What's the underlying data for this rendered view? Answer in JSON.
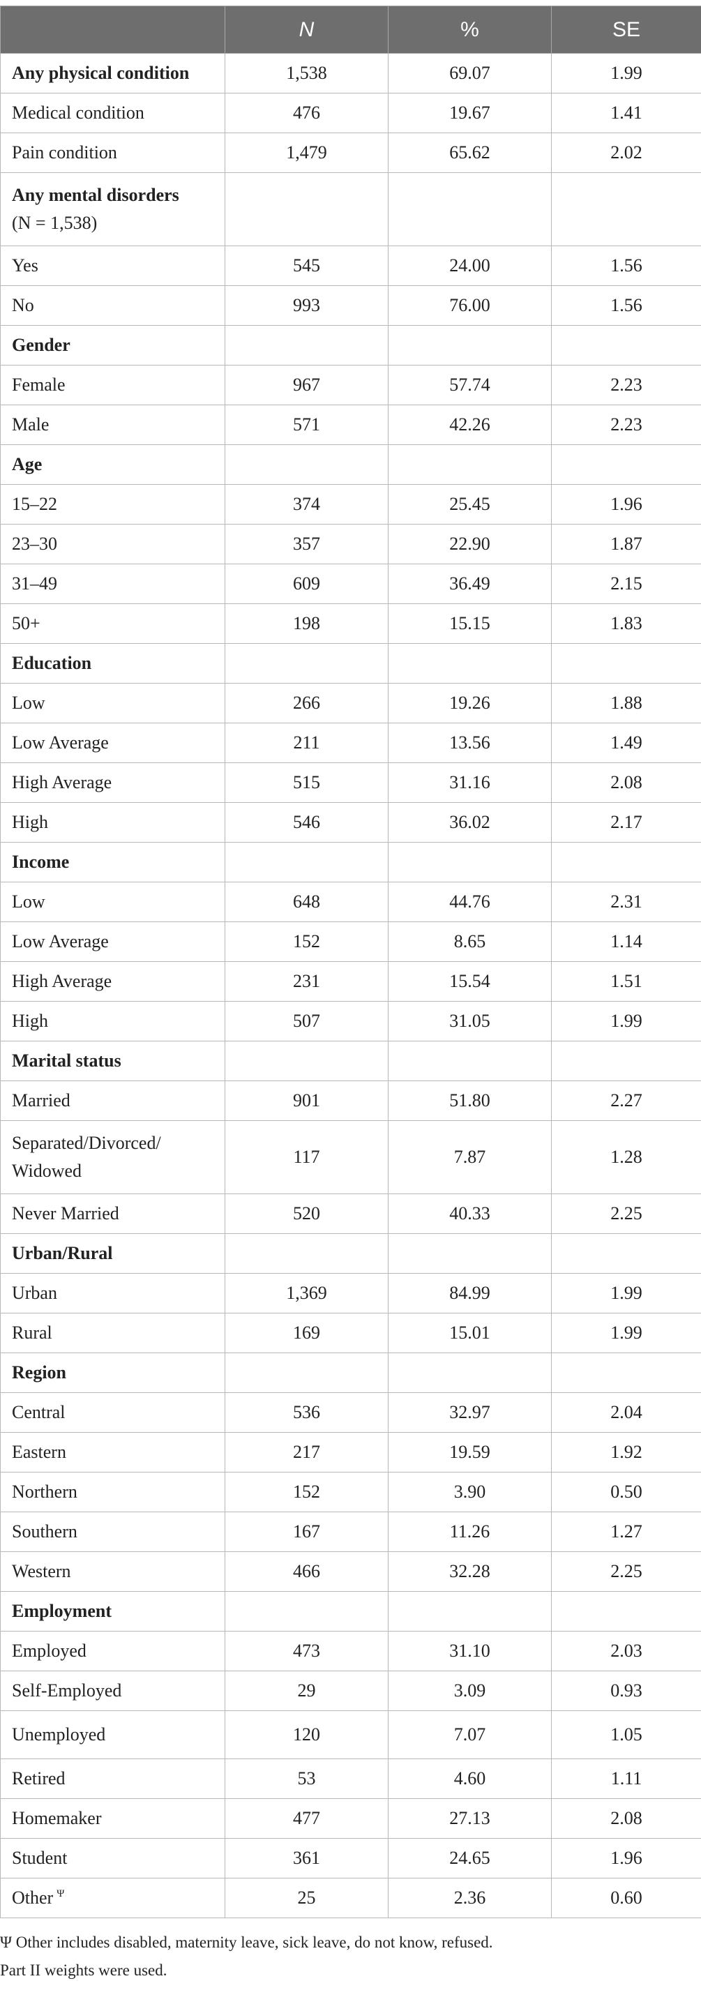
{
  "table": {
    "headers": [
      "",
      "N",
      "%",
      "SE"
    ],
    "rows": [
      {
        "label": "Any physical condition",
        "n": "1,538",
        "pct": "69.07",
        "se": "1.99",
        "bold": true
      },
      {
        "label": "Medical condition",
        "n": "476",
        "pct": "19.67",
        "se": "1.41"
      },
      {
        "label": "Pain condition",
        "n": "1,479",
        "pct": "65.62",
        "se": "2.02"
      },
      {
        "label": "Any mental disorders",
        "label2": "(N = 1,538)",
        "n": "",
        "pct": "",
        "se": "",
        "bold": true,
        "tall": true
      },
      {
        "label": "Yes",
        "n": "545",
        "pct": "24.00",
        "se": "1.56"
      },
      {
        "label": "No",
        "n": "993",
        "pct": "76.00",
        "se": "1.56"
      },
      {
        "label": "Gender",
        "n": "",
        "pct": "",
        "se": "",
        "bold": true
      },
      {
        "label": "Female",
        "n": "967",
        "pct": "57.74",
        "se": "2.23"
      },
      {
        "label": "Male",
        "n": "571",
        "pct": "42.26",
        "se": "2.23"
      },
      {
        "label": "Age",
        "n": "",
        "pct": "",
        "se": "",
        "bold": true
      },
      {
        "label": "15–22",
        "n": "374",
        "pct": "25.45",
        "se": "1.96"
      },
      {
        "label": "23–30",
        "n": "357",
        "pct": "22.90",
        "se": "1.87"
      },
      {
        "label": "31–49",
        "n": "609",
        "pct": "36.49",
        "se": "2.15"
      },
      {
        "label": "50+",
        "n": "198",
        "pct": "15.15",
        "se": "1.83"
      },
      {
        "label": "Education",
        "n": "",
        "pct": "",
        "se": "",
        "bold": true
      },
      {
        "label": "Low",
        "n": "266",
        "pct": "19.26",
        "se": "1.88"
      },
      {
        "label": "Low Average",
        "n": "211",
        "pct": "13.56",
        "se": "1.49"
      },
      {
        "label": "High Average",
        "n": "515",
        "pct": "31.16",
        "se": "2.08"
      },
      {
        "label": "High",
        "n": "546",
        "pct": "36.02",
        "se": "2.17"
      },
      {
        "label": "Income",
        "n": "",
        "pct": "",
        "se": "",
        "bold": true
      },
      {
        "label": "Low",
        "n": "648",
        "pct": "44.76",
        "se": "2.31"
      },
      {
        "label": "Low Average",
        "n": "152",
        "pct": "8.65",
        "se": "1.14"
      },
      {
        "label": "High Average",
        "n": "231",
        "pct": "15.54",
        "se": "1.51"
      },
      {
        "label": "High",
        "n": "507",
        "pct": "31.05",
        "se": "1.99"
      },
      {
        "label": "Marital status",
        "n": "",
        "pct": "",
        "se": "",
        "bold": true
      },
      {
        "label": "Married",
        "n": "901",
        "pct": "51.80",
        "se": "2.27"
      },
      {
        "label": "Separated/Divorced/",
        "label2": "Widowed",
        "n": "117",
        "pct": "7.87",
        "se": "1.28",
        "tall": true
      },
      {
        "label": "Never Married",
        "n": "520",
        "pct": "40.33",
        "se": "2.25"
      },
      {
        "label": "Urban/Rural",
        "n": "",
        "pct": "",
        "se": "",
        "bold": true
      },
      {
        "label": "Urban",
        "n": "1,369",
        "pct": "84.99",
        "se": "1.99"
      },
      {
        "label": "Rural",
        "n": "169",
        "pct": "15.01",
        "se": "1.99"
      },
      {
        "label": "Region",
        "n": "",
        "pct": "",
        "se": "",
        "bold": true
      },
      {
        "label": "Central",
        "n": "536",
        "pct": "32.97",
        "se": "2.04"
      },
      {
        "label": "Eastern",
        "n": "217",
        "pct": "19.59",
        "se": "1.92"
      },
      {
        "label": "Northern",
        "n": "152",
        "pct": "3.90",
        "se": "0.50"
      },
      {
        "label": "Southern",
        "n": "167",
        "pct": "11.26",
        "se": "1.27"
      },
      {
        "label": "Western",
        "n": "466",
        "pct": "32.28",
        "se": "2.25"
      },
      {
        "label": "Employment",
        "n": "",
        "pct": "",
        "se": "",
        "bold": true
      },
      {
        "label": "Employed",
        "n": "473",
        "pct": "31.10",
        "se": "2.03"
      },
      {
        "label": "Self-Employed",
        "n": "29",
        "pct": "3.09",
        "se": "0.93"
      },
      {
        "label": "Unemployed",
        "n": "120",
        "pct": "7.07",
        "se": "1.05",
        "mid": true
      },
      {
        "label": "Retired",
        "n": "53",
        "pct": "4.60",
        "se": "1.11"
      },
      {
        "label": "Homemaker",
        "n": "477",
        "pct": "27.13",
        "se": "2.08"
      },
      {
        "label": "Student",
        "n": "361",
        "pct": "24.65",
        "se": "1.96"
      },
      {
        "label": "Other",
        "sup": "Ψ",
        "n": "25",
        "pct": "2.36",
        "se": "0.60"
      }
    ]
  },
  "notes": {
    "footnote": "Ψ Other includes disabled, maternity leave, sick leave, do not know, refused.",
    "weights": "Part II weights were used."
  },
  "colors": {
    "header_bg": "#6e6e6e",
    "header_text": "#ffffff",
    "border": "#b8b8b8"
  }
}
